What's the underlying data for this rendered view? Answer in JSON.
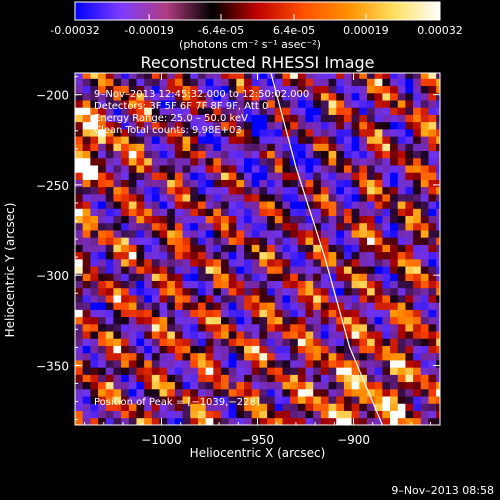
{
  "colorbar": {
    "tick_labels": [
      "-0.00032",
      "-0.00019",
      "-6.4e-05",
      "6.4e-05",
      "0.00019",
      "0.00032"
    ],
    "tick_values": [
      -0.00032,
      -0.00019,
      -6.4e-05,
      6.4e-05,
      0.00019,
      0.00032
    ],
    "range": [
      -0.00032,
      0.00032
    ],
    "units": "(photons cm⁻² s⁻¹ asec⁻²)",
    "colors": [
      "#0000ff",
      "#7c3cff",
      "#b03c80",
      "#000000",
      "#c00000",
      "#ff5000",
      "#ff9000",
      "#ffe060",
      "#ffffff"
    ]
  },
  "annotations": {
    "time_range": "9–Nov–2013 12:45:32.000 to 12:50:02.000",
    "detectors": "Detectors: 3F 5F 6F 7F 8F 9F, Att 0",
    "energy_range": "Energy Range: 25.0 – 50.0 keV",
    "method_counts": "Clean     Total counts: 9.98E+03",
    "peak_position": "Position of Peak = [−1039,−228]"
  },
  "timestamp": "9–Nov–2013 08:58",
  "chart_data": {
    "type": "heatmap",
    "title": "Reconstructed RHESSI Image",
    "xlabel": "Heliocentric X (arcsec)",
    "ylabel": "Heliocentric Y (arcsec)",
    "xlim": [
      -1045,
      -855
    ],
    "ylim": [
      -383,
      -188
    ],
    "x_ticks": [
      -1000,
      -950,
      -900
    ],
    "x_tick_labels": [
      "−1000",
      "−950",
      "−900"
    ],
    "y_ticks": [
      -200,
      -250,
      -300,
      -350
    ],
    "y_tick_labels": [
      "−200",
      "−250",
      "−300",
      "−350"
    ],
    "pixel_size_arcsec": 4,
    "stripe_period_arcsec": 22,
    "stripe_direction_deg": 40,
    "peak": [
      -1039,
      -228
    ],
    "limb_curve": [
      [
        -943,
        -188
      ],
      [
        -930,
        -240
      ],
      [
        -915,
        -290
      ],
      [
        -902,
        -340
      ],
      [
        -885,
        -383
      ]
    ]
  }
}
